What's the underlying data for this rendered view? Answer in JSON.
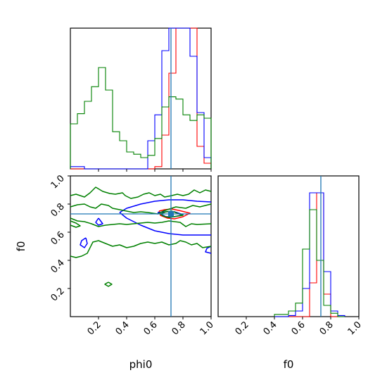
{
  "chart_data": {
    "type": "corner",
    "parameters": [
      "phi0",
      "f0"
    ],
    "truth": {
      "phi0": 0.715,
      "f0": 0.73
    },
    "colors": {
      "truth": "#1f77b4",
      "red": "#ff0000",
      "blue": "#0000ff",
      "green": "#008000"
    },
    "marginals": {
      "phi0": {
        "xlim": [
          0,
          1
        ],
        "bin_edges": [
          0,
          0.05,
          0.1,
          0.15,
          0.2,
          0.25,
          0.3,
          0.35,
          0.4,
          0.45,
          0.5,
          0.55,
          0.6,
          0.65,
          0.7,
          0.75,
          0.8,
          0.85,
          0.9,
          0.95,
          1.0
        ],
        "series": [
          {
            "color": "red",
            "counts": [
              0,
              0,
              0,
              0,
              0,
              0,
              0,
              0,
              0,
              0,
              0,
              0,
              0.02,
              0.3,
              0.85,
              1.25,
              1.25,
              1.25,
              0.2,
              0.05
            ]
          },
          {
            "color": "blue",
            "counts": [
              0.02,
              0.02,
              0,
              0,
              0,
              0,
              0,
              0,
              0,
              0,
              0,
              0.25,
              0.48,
              1.05,
              1.28,
              1.25,
              1.25,
              1.0,
              0.5,
              0.1
            ]
          },
          {
            "color": "green",
            "counts": [
              0.4,
              0.49,
              0.6,
              0.73,
              0.9,
              0.7,
              0.33,
              0.25,
              0.15,
              0.13,
              0.1,
              0.12,
              0.27,
              0.55,
              0.64,
              0.62,
              0.48,
              0.43,
              0.48,
              0.45
            ]
          }
        ]
      },
      "f0": {
        "xlim": [
          0,
          1
        ],
        "bin_edges": [
          0.4,
          0.45,
          0.5,
          0.55,
          0.6,
          0.65,
          0.7,
          0.75,
          0.8,
          0.85,
          0.9
        ],
        "series": [
          {
            "color": "red",
            "counts": [
              0,
              0,
              0,
              0,
              0,
              0.3,
              1.1,
              0.2,
              0,
              0
            ]
          },
          {
            "color": "blue",
            "counts": [
              0,
              0,
              0.01,
              0.05,
              0.25,
              1.1,
              1.1,
              0.4,
              0.05,
              0.01
            ]
          },
          {
            "color": "green",
            "counts": [
              0.02,
              0.02,
              0.05,
              0.12,
              0.6,
              0.95,
              0.5,
              0.1,
              0.03,
              0
            ]
          }
        ]
      }
    },
    "joint": {
      "xlim": [
        0,
        1
      ],
      "ylim": [
        0,
        1
      ],
      "contours": [
        {
          "color": "red",
          "path": [
            [
              0.63,
              0.75
            ],
            [
              0.67,
              0.76
            ],
            [
              0.72,
              0.765
            ],
            [
              0.77,
              0.755
            ],
            [
              0.85,
              0.735
            ],
            [
              0.8,
              0.71
            ],
            [
              0.74,
              0.695
            ],
            [
              0.69,
              0.7
            ],
            [
              0.64,
              0.72
            ],
            [
              0.63,
              0.75
            ]
          ]
        },
        {
          "color": "blue",
          "path": [
            [
              0.62,
              0.74
            ],
            [
              0.68,
              0.745
            ],
            [
              0.74,
              0.745
            ],
            [
              0.8,
              0.725
            ],
            [
              0.74,
              0.71
            ],
            [
              0.68,
              0.71
            ],
            [
              0.62,
              0.74
            ]
          ]
        },
        {
          "color": "blue",
          "path": [
            [
              0.35,
              0.74
            ],
            [
              0.4,
              0.77
            ],
            [
              0.5,
              0.8
            ],
            [
              0.6,
              0.82
            ],
            [
              0.7,
              0.83
            ],
            [
              0.8,
              0.83
            ],
            [
              0.9,
              0.82
            ],
            [
              1.0,
              0.815
            ]
          ]
        },
        {
          "color": "blue",
          "path": [
            [
              0.35,
              0.74
            ],
            [
              0.4,
              0.7
            ],
            [
              0.5,
              0.65
            ],
            [
              0.6,
              0.61
            ],
            [
              0.7,
              0.59
            ],
            [
              0.8,
              0.58
            ],
            [
              0.9,
              0.58
            ],
            [
              1.0,
              0.58
            ]
          ]
        },
        {
          "color": "blue",
          "path": [
            [
              0.11,
              0.56
            ],
            [
              0.08,
              0.54
            ],
            [
              0.07,
              0.51
            ],
            [
              0.1,
              0.49
            ],
            [
              0.12,
              0.52
            ],
            [
              0.11,
              0.56
            ]
          ]
        },
        {
          "color": "blue",
          "path": [
            [
              0.2,
              0.7
            ],
            [
              0.18,
              0.67
            ],
            [
              0.2,
              0.65
            ],
            [
              0.23,
              0.66
            ],
            [
              0.2,
              0.7
            ]
          ]
        },
        {
          "color": "blue",
          "path": [
            [
              1.0,
              0.5
            ],
            [
              0.97,
              0.485
            ],
            [
              0.96,
              0.46
            ],
            [
              1.0,
              0.45
            ]
          ]
        },
        {
          "color": "green",
          "path": [
            [
              0,
              0.86
            ],
            [
              0.04,
              0.87
            ],
            [
              0.1,
              0.85
            ],
            [
              0.14,
              0.88
            ],
            [
              0.18,
              0.92
            ],
            [
              0.23,
              0.89
            ],
            [
              0.28,
              0.875
            ],
            [
              0.32,
              0.87
            ],
            [
              0.37,
              0.88
            ],
            [
              0.39,
              0.86
            ],
            [
              0.43,
              0.84
            ],
            [
              0.48,
              0.85
            ],
            [
              0.52,
              0.87
            ],
            [
              0.56,
              0.88
            ],
            [
              0.6,
              0.86
            ],
            [
              0.64,
              0.87
            ],
            [
              0.67,
              0.85
            ],
            [
              0.72,
              0.86
            ],
            [
              0.76,
              0.87
            ],
            [
              0.8,
              0.86
            ],
            [
              0.84,
              0.87
            ],
            [
              0.88,
              0.9
            ],
            [
              0.92,
              0.88
            ],
            [
              0.96,
              0.9
            ],
            [
              1.0,
              0.89
            ]
          ]
        },
        {
          "color": "green",
          "path": [
            [
              0,
              0.43
            ],
            [
              0.04,
              0.42
            ],
            [
              0.08,
              0.43
            ],
            [
              0.12,
              0.45
            ],
            [
              0.16,
              0.53
            ],
            [
              0.2,
              0.54
            ],
            [
              0.25,
              0.52
            ],
            [
              0.3,
              0.5
            ],
            [
              0.35,
              0.51
            ],
            [
              0.4,
              0.49
            ],
            [
              0.45,
              0.5
            ],
            [
              0.5,
              0.52
            ],
            [
              0.55,
              0.53
            ],
            [
              0.6,
              0.52
            ],
            [
              0.65,
              0.53
            ],
            [
              0.7,
              0.51
            ],
            [
              0.75,
              0.52
            ],
            [
              0.78,
              0.54
            ],
            [
              0.82,
              0.53
            ],
            [
              0.86,
              0.51
            ],
            [
              0.9,
              0.52
            ],
            [
              0.94,
              0.49
            ],
            [
              1.0,
              0.5
            ]
          ]
        },
        {
          "color": "green",
          "path": [
            [
              0,
              0.78
            ],
            [
              0.05,
              0.795
            ],
            [
              0.1,
              0.8
            ],
            [
              0.14,
              0.78
            ],
            [
              0.18,
              0.77
            ],
            [
              0.22,
              0.8
            ],
            [
              0.27,
              0.79
            ],
            [
              0.3,
              0.77
            ],
            [
              0.35,
              0.76
            ],
            [
              0.4,
              0.75
            ],
            [
              0.45,
              0.74
            ],
            [
              0.5,
              0.745
            ],
            [
              0.55,
              0.74
            ],
            [
              0.62,
              0.73
            ],
            [
              0.66,
              0.75
            ],
            [
              0.75,
              0.78
            ],
            [
              0.82,
              0.77
            ],
            [
              0.87,
              0.79
            ],
            [
              0.92,
              0.78
            ],
            [
              1.0,
              0.8
            ]
          ]
        },
        {
          "color": "green",
          "path": [
            [
              0,
              0.7
            ],
            [
              0.05,
              0.68
            ],
            [
              0.1,
              0.675
            ],
            [
              0.15,
              0.66
            ],
            [
              0.2,
              0.64
            ],
            [
              0.25,
              0.65
            ],
            [
              0.3,
              0.655
            ],
            [
              0.35,
              0.66
            ],
            [
              0.4,
              0.655
            ],
            [
              0.45,
              0.66
            ],
            [
              0.5,
              0.665
            ],
            [
              0.55,
              0.67
            ],
            [
              0.6,
              0.665
            ],
            [
              0.65,
              0.67
            ],
            [
              0.7,
              0.68
            ],
            [
              0.78,
              0.67
            ],
            [
              0.82,
              0.64
            ],
            [
              0.86,
              0.66
            ],
            [
              0.9,
              0.655
            ],
            [
              1.0,
              0.66
            ]
          ]
        },
        {
          "color": "green",
          "path": [
            [
              0.64,
              0.73
            ],
            [
              0.68,
              0.745
            ],
            [
              0.72,
              0.75
            ],
            [
              0.8,
              0.72
            ],
            [
              0.7,
              0.705
            ],
            [
              0.66,
              0.715
            ],
            [
              0.64,
              0.73
            ]
          ]
        },
        {
          "color": "green",
          "path": [
            [
              0.0,
              0.68
            ],
            [
              0.04,
              0.665
            ],
            [
              0.07,
              0.645
            ],
            [
              0.04,
              0.635
            ],
            [
              0.0,
              0.65
            ]
          ]
        },
        {
          "color": "green",
          "path": [
            [
              0.27,
              0.245
            ],
            [
              0.295,
              0.23
            ],
            [
              0.27,
              0.215
            ],
            [
              0.245,
              0.23
            ],
            [
              0.27,
              0.245
            ]
          ]
        }
      ]
    },
    "axes": {
      "x_ticks": [
        0.2,
        0.4,
        0.6,
        0.8,
        1.0
      ],
      "y_ticks": [
        0.2,
        0.4,
        0.6,
        0.8,
        1.0
      ],
      "x_tick_labels": [
        "0.2",
        "0.4",
        "0.6",
        "0.8",
        "1.0"
      ],
      "y_tick_labels": [
        "0.2",
        "0.4",
        "0.6",
        "0.8",
        "1.0"
      ],
      "xlabel_left": "phi0",
      "xlabel_right": "f0",
      "ylabel": "f0"
    }
  }
}
